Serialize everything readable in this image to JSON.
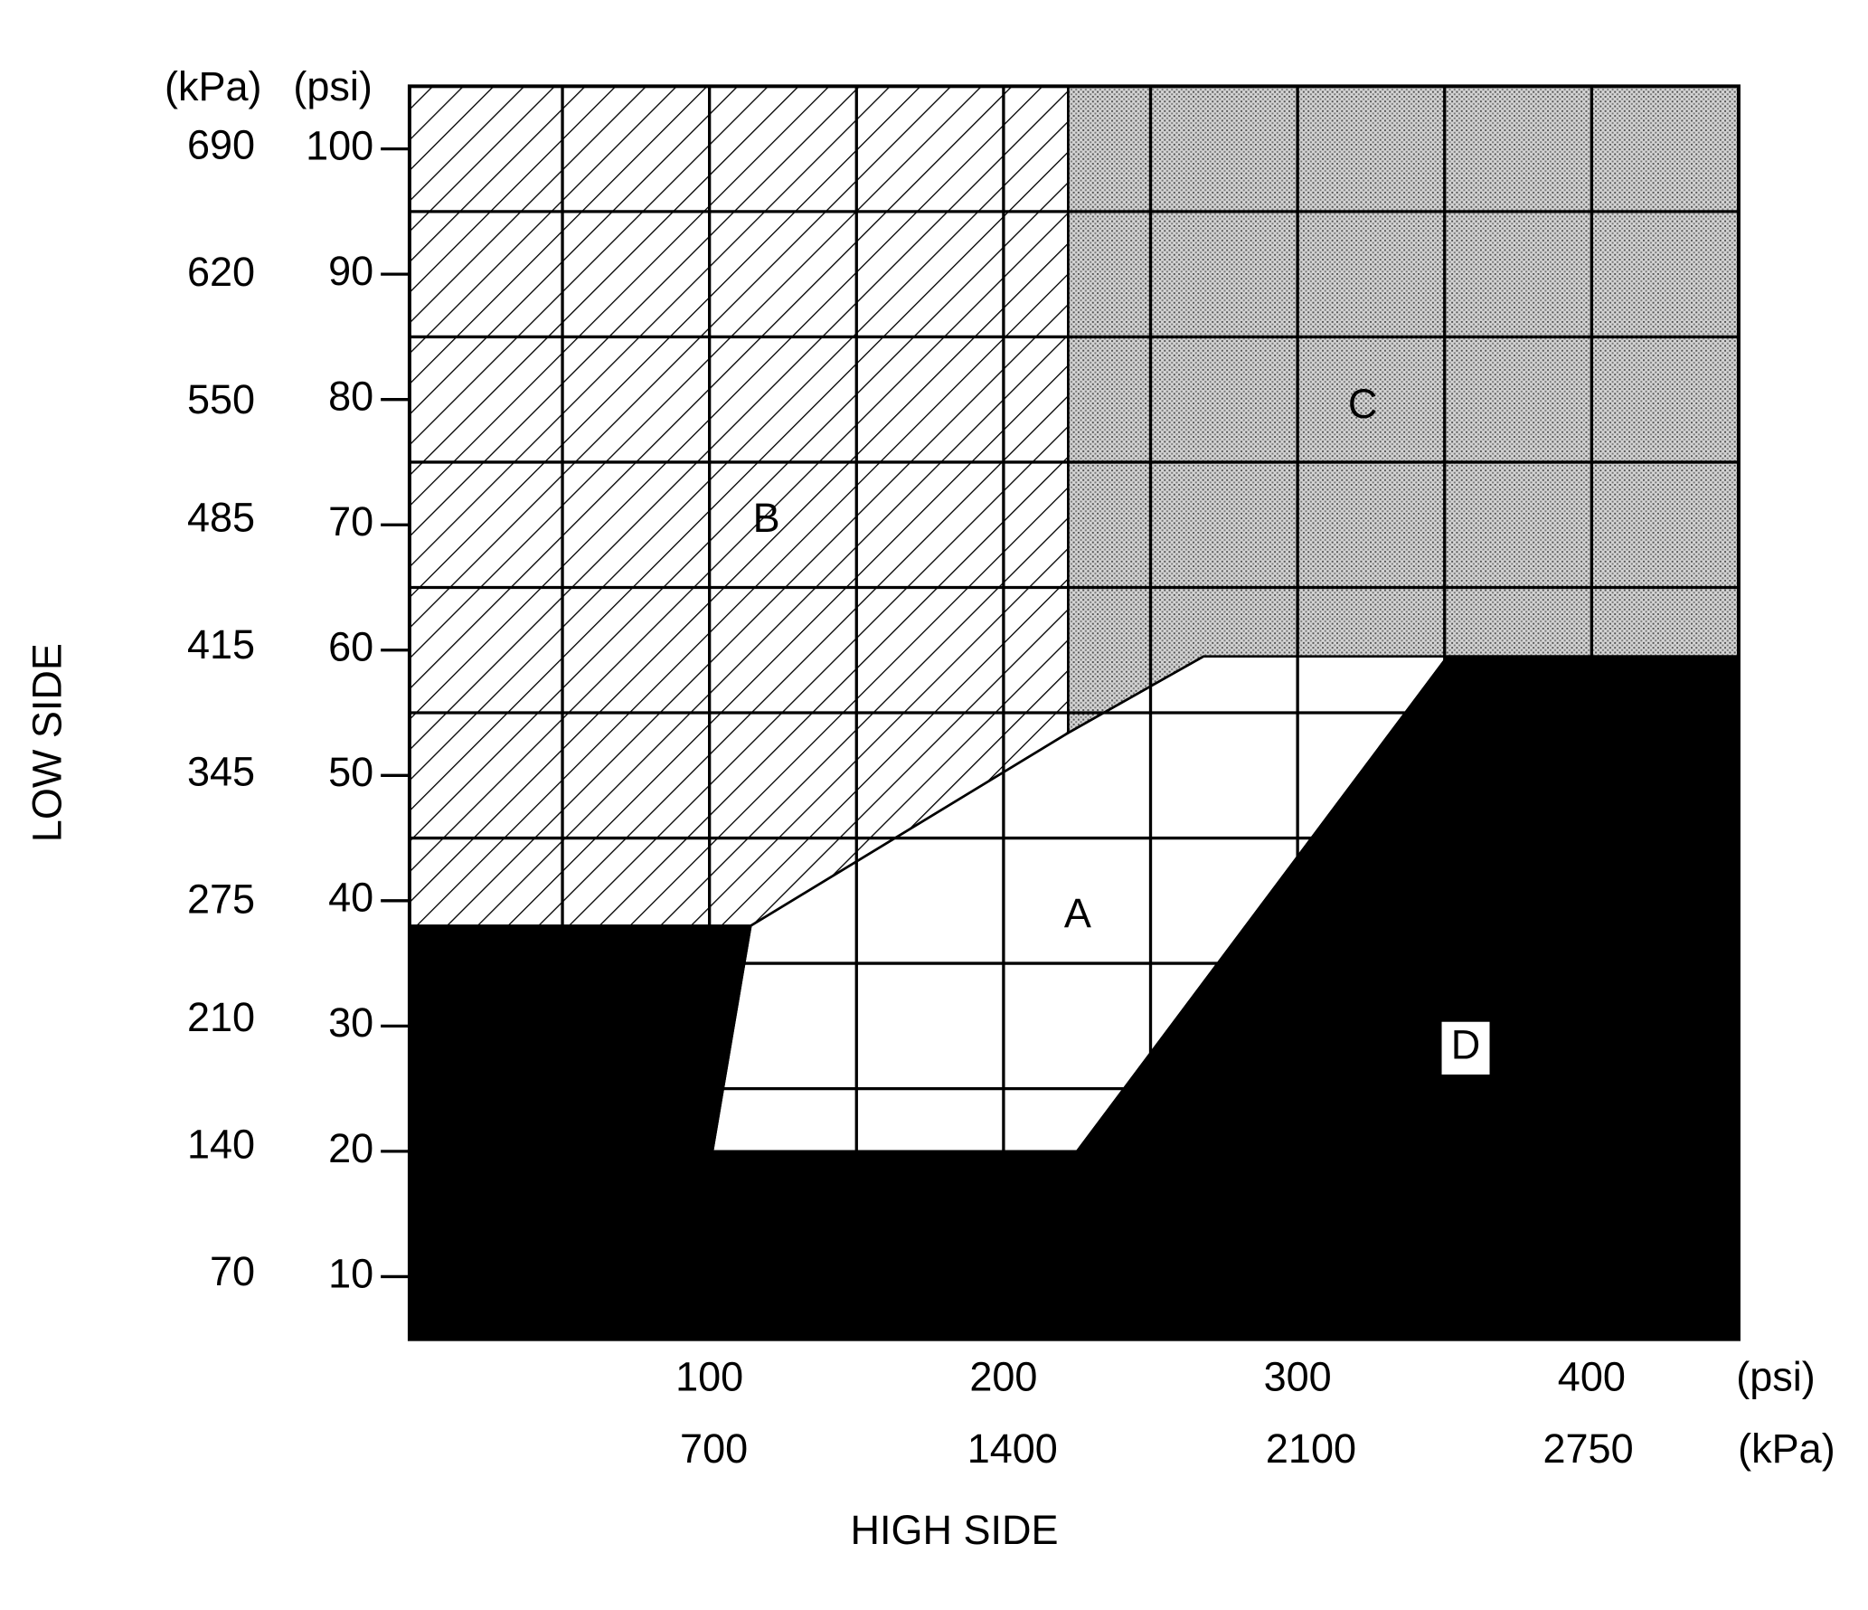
{
  "chart_data": {
    "type": "region",
    "y_axis_title": "LOW SIDE",
    "x_axis_title": "HIGH SIDE",
    "x_unit": "(psi)",
    "x2_unit": "(kPa)",
    "y_unit": "(psi)",
    "y2_unit": "(kPa)",
    "xlim": [
      -2,
      450
    ],
    "xticks": [
      100,
      200,
      300,
      400
    ],
    "x2lim": [
      -13.8,
      3102.8
    ],
    "x2ticks": [
      700,
      1400,
      2100,
      2750
    ],
    "ylim": [
      5,
      105
    ],
    "yticks": [
      10,
      20,
      30,
      40,
      50,
      60,
      70,
      80,
      90,
      100
    ],
    "y2lim": [
      34.5,
      724
    ],
    "y2ticks": [
      70,
      140,
      210,
      275,
      345,
      415,
      485,
      550,
      620,
      690
    ],
    "xgrid": [
      50,
      100,
      150,
      200,
      250,
      300,
      350,
      400
    ],
    "ygrid": [
      25,
      35,
      45,
      55,
      65,
      75,
      85,
      95
    ],
    "regions": [
      {
        "name": "A",
        "fill": "white",
        "x": [
          114,
          222,
          268,
          351,
          225,
          101
        ],
        "y": [
          38,
          53.4,
          59.5,
          59.5,
          20,
          20
        ]
      },
      {
        "name": "B",
        "fill": "hatch",
        "x": [
          -2,
          222,
          222,
          114,
          -2
        ],
        "y": [
          105,
          105,
          53.4,
          38,
          38
        ]
      },
      {
        "name": "C",
        "fill": "stipple",
        "x": [
          222,
          450,
          450,
          268,
          222
        ],
        "y": [
          105,
          105,
          59.5,
          59.5,
          53.4
        ]
      },
      {
        "name": "D",
        "fill": "black",
        "x": [
          -2,
          114,
          101,
          225,
          351,
          450,
          450,
          -2
        ],
        "y": [
          38,
          38,
          20,
          20,
          59.5,
          59.5,
          5,
          5
        ]
      }
    ]
  }
}
